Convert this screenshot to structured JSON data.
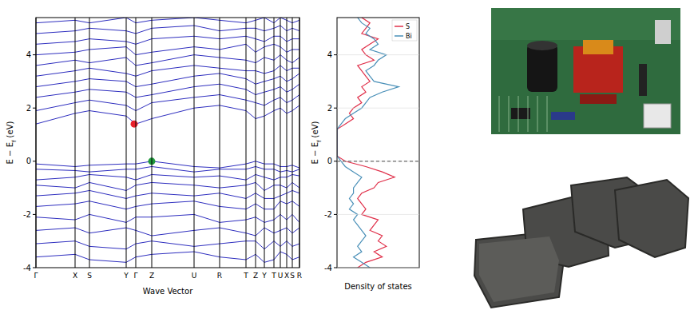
{
  "chart_data": [
    {
      "type": "line",
      "xlabel": "Wave Vector",
      "ylabel": [
        "E − E",
        "f",
        " (eV)"
      ],
      "x": [
        0,
        49,
        67,
        113,
        125,
        145,
        198,
        230,
        263,
        275,
        286,
        298,
        306,
        314,
        321,
        330
      ],
      "xlim": [
        0,
        330
      ],
      "xticks": [
        {
          "value": 0,
          "label": "Γ"
        },
        {
          "value": 49,
          "label": "X"
        },
        {
          "value": 67,
          "label": "S"
        },
        {
          "value": 113,
          "label": "Y"
        },
        {
          "value": 125,
          "label": "Γ"
        },
        {
          "value": 145,
          "label": "Z"
        },
        {
          "value": 198,
          "label": "U"
        },
        {
          "value": 230,
          "label": "R"
        },
        {
          "value": 263,
          "label": "T"
        },
        {
          "value": 275,
          "label": "Z"
        },
        {
          "value": 286,
          "label": "Y"
        },
        {
          "value": 298,
          "label": "T"
        },
        {
          "value": 306,
          "label": "U"
        },
        {
          "value": 314,
          "label": "X"
        },
        {
          "value": 321,
          "label": "S"
        },
        {
          "value": 330,
          "label": "R"
        }
      ],
      "ylim": [
        -4,
        5.4
      ],
      "yticks": [
        -4,
        -2,
        0,
        2,
        4
      ],
      "grid": "x",
      "color": "#2e2ebf",
      "series": [
        {
          "values": [
            -0.1,
            -0.2,
            -0.15,
            -0.1,
            -0.1,
            0,
            -0.2,
            -0.25,
            -0.1,
            0,
            -0.1,
            -0.1,
            -0.2,
            -0.2,
            -0.15,
            -0.25
          ]
        },
        {
          "values": [
            -0.3,
            -0.35,
            -0.4,
            -0.3,
            -0.3,
            -0.2,
            -0.4,
            -0.3,
            -0.3,
            -0.2,
            -0.3,
            -0.3,
            -0.4,
            -0.35,
            -0.4,
            -0.3
          ]
        },
        {
          "values": [
            -0.7,
            -0.6,
            -0.5,
            -0.6,
            -0.7,
            -0.5,
            -0.6,
            -0.55,
            -0.7,
            -0.5,
            -0.6,
            -0.7,
            -0.6,
            -0.6,
            -0.5,
            -0.55
          ]
        },
        {
          "values": [
            -0.9,
            -1.0,
            -0.8,
            -1.1,
            -0.9,
            -0.8,
            -0.9,
            -1.0,
            -0.9,
            -0.8,
            -1.1,
            -0.9,
            -0.9,
            -1.0,
            -0.8,
            -1.0
          ]
        },
        {
          "values": [
            -1.3,
            -1.2,
            -1.1,
            -1.4,
            -1.3,
            -1.2,
            -1.3,
            -1.2,
            -1.4,
            -1.2,
            -1.4,
            -1.4,
            -1.3,
            -1.2,
            -1.1,
            -1.2
          ]
        },
        {
          "values": [
            -1.7,
            -1.6,
            -1.5,
            -1.8,
            -1.7,
            -1.6,
            -1.5,
            -1.7,
            -1.8,
            -1.6,
            -1.8,
            -1.8,
            -1.5,
            -1.6,
            -1.5,
            -1.7
          ]
        },
        {
          "values": [
            -2.1,
            -2.2,
            -2.0,
            -2.3,
            -2.1,
            -2.1,
            -2.0,
            -2.3,
            -2.2,
            -2.1,
            -2.3,
            -2.2,
            -2.0,
            -2.2,
            -2.0,
            -2.3
          ]
        },
        {
          "values": [
            -2.6,
            -2.5,
            -2.7,
            -2.5,
            -2.6,
            -2.8,
            -2.6,
            -2.5,
            -2.7,
            -2.8,
            -2.5,
            -2.7,
            -2.6,
            -2.5,
            -2.7,
            -2.5
          ]
        },
        {
          "values": [
            -3.1,
            -3.0,
            -3.2,
            -3.3,
            -3.1,
            -3.0,
            -3.2,
            -3.1,
            -3.0,
            -3.0,
            -3.3,
            -3.0,
            -3.2,
            -3.0,
            -3.2,
            -3.1
          ]
        },
        {
          "values": [
            -3.6,
            -3.5,
            -3.7,
            -3.8,
            -3.6,
            -3.5,
            -3.4,
            -3.6,
            -3.7,
            -3.5,
            -3.8,
            -3.7,
            -3.4,
            -3.5,
            -3.7,
            -3.6
          ]
        },
        {
          "values": [
            1.4,
            1.8,
            1.9,
            1.7,
            1.4,
            1.6,
            2.0,
            2.1,
            1.9,
            1.6,
            1.7,
            1.9,
            2.0,
            1.8,
            1.9,
            2.1
          ]
        },
        {
          "values": [
            1.9,
            2.2,
            2.3,
            2.1,
            1.9,
            2.2,
            2.4,
            2.5,
            2.3,
            2.2,
            2.1,
            2.3,
            2.4,
            2.2,
            2.3,
            2.5
          ]
        },
        {
          "values": [
            2.4,
            2.6,
            2.7,
            2.6,
            2.4,
            2.5,
            2.8,
            2.9,
            2.7,
            2.5,
            2.6,
            2.7,
            2.8,
            2.6,
            2.7,
            2.9
          ]
        },
        {
          "values": [
            2.8,
            3.0,
            3.1,
            3.0,
            2.8,
            2.9,
            3.2,
            3.3,
            3.1,
            2.9,
            3.0,
            3.1,
            3.2,
            3.0,
            3.1,
            3.3
          ]
        },
        {
          "values": [
            3.2,
            3.4,
            3.5,
            3.3,
            3.2,
            3.4,
            3.6,
            3.5,
            3.4,
            3.4,
            3.3,
            3.4,
            3.6,
            3.4,
            3.5,
            3.5
          ]
        },
        {
          "values": [
            3.6,
            3.8,
            3.7,
            3.9,
            3.6,
            3.7,
            4.0,
            3.9,
            3.8,
            3.7,
            3.9,
            3.8,
            4.0,
            3.8,
            3.7,
            3.9
          ]
        },
        {
          "values": [
            4.0,
            4.1,
            4.2,
            4.3,
            4.0,
            4.1,
            4.3,
            4.2,
            4.4,
            4.1,
            4.3,
            4.4,
            4.3,
            4.1,
            4.2,
            4.2
          ]
        },
        {
          "values": [
            4.4,
            4.5,
            4.6,
            4.5,
            4.4,
            4.6,
            4.7,
            4.6,
            4.7,
            4.6,
            4.5,
            4.7,
            4.7,
            4.5,
            4.6,
            4.6
          ]
        },
        {
          "values": [
            4.8,
            4.9,
            5.0,
            4.9,
            4.8,
            5.0,
            5.1,
            4.9,
            5.0,
            5.0,
            4.9,
            5.0,
            5.1,
            4.9,
            5.0,
            4.9
          ]
        },
        {
          "values": [
            5.2,
            5.3,
            5.2,
            5.4,
            5.2,
            5.3,
            5.4,
            5.3,
            5.2,
            5.3,
            5.4,
            5.2,
            5.4,
            5.3,
            5.2,
            5.3
          ]
        }
      ],
      "markers": [
        {
          "x": 123,
          "y": 1.4,
          "color": "#e8202a"
        },
        {
          "x": 145,
          "y": 0,
          "color": "#1f9a3c"
        }
      ]
    },
    {
      "type": "line",
      "orientation": "horizontal",
      "xlabel": [
        "E − E",
        "f",
        " (eV)"
      ],
      "ylabel": "Density of states",
      "x": [
        -4.0,
        -3.8,
        -3.6,
        -3.4,
        -3.2,
        -3.0,
        -2.8,
        -2.6,
        -2.4,
        -2.2,
        -2.0,
        -1.8,
        -1.6,
        -1.4,
        -1.2,
        -1.0,
        -0.8,
        -0.6,
        -0.4,
        -0.2,
        0.0,
        0.2,
        0.4,
        0.6,
        0.8,
        1.0,
        1.2,
        1.4,
        1.6,
        1.8,
        2.0,
        2.2,
        2.4,
        2.6,
        2.8,
        3.0,
        3.2,
        3.4,
        3.6,
        3.8,
        4.0,
        4.2,
        4.4,
        4.6,
        4.8,
        5.0,
        5.2,
        5.4
      ],
      "xlim": [
        -4,
        5.4
      ],
      "xticks": [
        -4,
        -2,
        0,
        2,
        4
      ],
      "ylim": [
        0,
        1
      ],
      "tick_labels": "x",
      "legend": "top-right",
      "reference_line": {
        "value": 0,
        "line_style": "dashed"
      },
      "series": [
        {
          "name": "S",
          "color": "#e0304a",
          "values": [
            0.25,
            0.35,
            0.55,
            0.45,
            0.6,
            0.5,
            0.55,
            0.4,
            0.45,
            0.5,
            0.3,
            0.35,
            0.3,
            0.25,
            0.3,
            0.45,
            0.5,
            0.7,
            0.55,
            0.35,
            0.1,
            0,
            0,
            0,
            0,
            0,
            0,
            0.1,
            0.2,
            0.15,
            0.2,
            0.3,
            0.25,
            0.35,
            0.3,
            0.4,
            0.35,
            0.3,
            0.25,
            0.45,
            0.35,
            0.3,
            0.4,
            0.5,
            0.3,
            0.35,
            0.4,
            0.3
          ]
        },
        {
          "name": "Bi",
          "color": "#4a90b8",
          "values": [
            0.4,
            0.3,
            0.2,
            0.3,
            0.25,
            0.3,
            0.35,
            0.3,
            0.25,
            0.2,
            0.25,
            0.15,
            0.2,
            0.15,
            0.2,
            0.2,
            0.25,
            0.3,
            0.2,
            0.1,
            0.05,
            0,
            0,
            0,
            0,
            0,
            0,
            0.05,
            0.1,
            0.2,
            0.3,
            0.35,
            0.4,
            0.55,
            0.75,
            0.45,
            0.4,
            0.35,
            0.45,
            0.5,
            0.6,
            0.4,
            0.5,
            0.45,
            0.35,
            0.4,
            0.3,
            0.25
          ]
        }
      ]
    }
  ]
}
